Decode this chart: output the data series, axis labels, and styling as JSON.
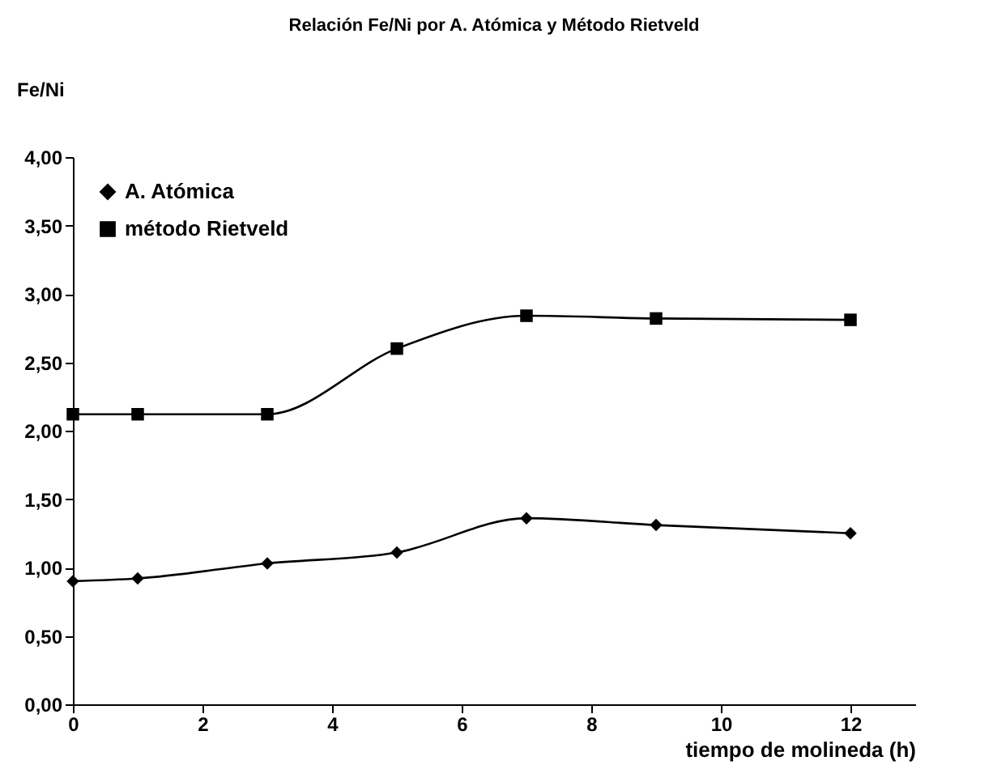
{
  "chart_data": {
    "type": "line",
    "title": "Relación Fe/Ni por A. Atómica y Método Rietveld",
    "xlabel": "tiempo de molineda (h)",
    "ylabel": "Fe/Ni",
    "x": [
      0,
      1,
      3,
      5,
      7,
      9,
      12
    ],
    "series": [
      {
        "name": "A. Atómica",
        "color": "#000000",
        "marker": "diamond",
        "values": [
          0.9,
          0.92,
          1.03,
          1.11,
          1.36,
          1.31,
          1.25
        ]
      },
      {
        "name": "método Rietveld",
        "color": "#000000",
        "marker": "square",
        "values": [
          2.12,
          2.12,
          2.12,
          2.6,
          2.84,
          2.82,
          2.81
        ]
      }
    ],
    "xlim": [
      0,
      13
    ],
    "xticks": [
      0,
      2,
      4,
      6,
      8,
      10,
      12
    ],
    "ylim": [
      0,
      4
    ],
    "yticks": [
      {
        "value": 0,
        "label": "0,00"
      },
      {
        "value": 0.5,
        "label": "0,50"
      },
      {
        "value": 1,
        "label": "1,00"
      },
      {
        "value": 1.5,
        "label": "1,50"
      },
      {
        "value": 2,
        "label": "2,00"
      },
      {
        "value": 2.5,
        "label": "2,50"
      },
      {
        "value": 3,
        "label": "3,00"
      },
      {
        "value": 3.5,
        "label": "3,50"
      },
      {
        "value": 4,
        "label": "4,00"
      }
    ],
    "grid": false,
    "legend": "top left",
    "line_style": "solid"
  }
}
